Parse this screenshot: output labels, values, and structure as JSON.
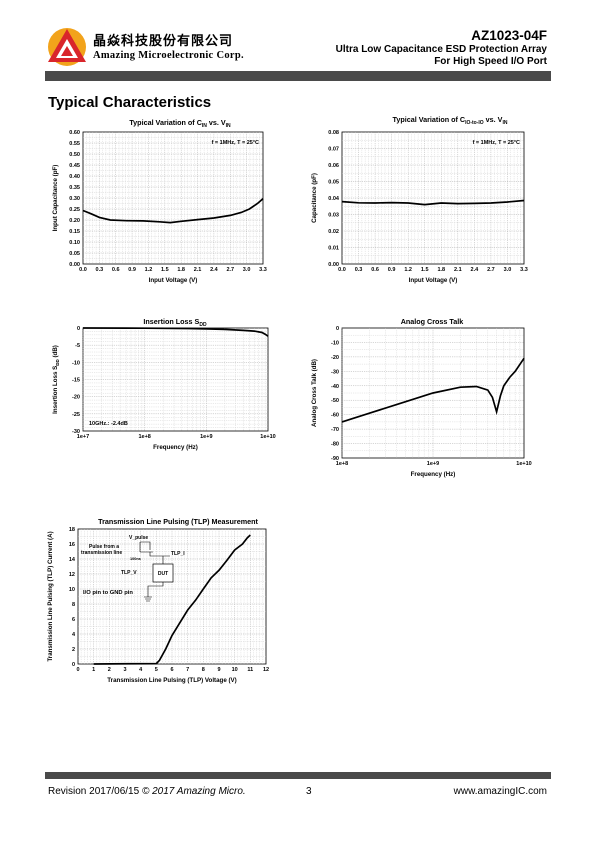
{
  "header": {
    "company_cn": "晶焱科技股份有限公司",
    "company_en": "Amazing Microelectronic Corp.",
    "part_number": "AZ1023-04F",
    "subtitle_1": "Ultra  Low  Capacitance  ESD  Protection  Array",
    "subtitle_2": "For  High  Speed  I/O  Port",
    "brand_color": "#d9262b",
    "logo_accent": "#f2a31b"
  },
  "section_title": "Typical Characteristics",
  "footer": {
    "revision": "Revision 2017/06/15",
    "copyright": "© 2017 Amazing Micro.",
    "page": "3",
    "website": "www.amazingIC.com"
  },
  "chart_data": [
    {
      "type": "line",
      "title": "Typical Variation of C",
      "title_sub": "IN",
      "title_mid": " vs. V",
      "title_sub2": "IN",
      "xlabel": "Input Voltage (V)",
      "ylabel": "Input Capacitance (pF)",
      "annotation": "f = 1MHz, T = 25°C",
      "xlim": [
        0,
        3.3
      ],
      "ylim": [
        0,
        0.6
      ],
      "xticks": [
        "0.0",
        "0.3",
        "0.6",
        "0.9",
        "1.2",
        "1.5",
        "1.8",
        "2.1",
        "2.4",
        "2.7",
        "3.0",
        "3.3"
      ],
      "yticks": [
        "0.00",
        "0.05",
        "0.10",
        "0.15",
        "0.20",
        "0.25",
        "0.30",
        "0.35",
        "0.40",
        "0.45",
        "0.50",
        "0.55",
        "0.60"
      ],
      "x": [
        0,
        0.15,
        0.3,
        0.5,
        0.8,
        1.1,
        1.4,
        1.6,
        1.8,
        2.1,
        2.4,
        2.7,
        2.9,
        3.05,
        3.2,
        3.3
      ],
      "y": [
        0.243,
        0.228,
        0.212,
        0.2,
        0.197,
        0.196,
        0.192,
        0.188,
        0.194,
        0.202,
        0.209,
        0.221,
        0.234,
        0.25,
        0.275,
        0.297
      ]
    },
    {
      "type": "line",
      "title": "Typical Variation of C",
      "title_sub": "IO-to-IO",
      "title_mid": " vs. V",
      "title_sub2": "IN",
      "xlabel": "Input Voltage (V)",
      "ylabel": "Capacitance (pF)",
      "annotation": "f = 1MHz, T = 25°C",
      "xlim": [
        0,
        3.3
      ],
      "ylim": [
        0,
        0.08
      ],
      "xticks": [
        "0.0",
        "0.3",
        "0.6",
        "0.9",
        "1.2",
        "1.5",
        "1.8",
        "2.1",
        "2.4",
        "2.7",
        "3.0",
        "3.3"
      ],
      "yticks": [
        "0.00",
        "0.01",
        "0.02",
        "0.03",
        "0.04",
        "0.05",
        "0.06",
        "0.07",
        "0.08"
      ],
      "x": [
        0,
        0.3,
        0.6,
        0.9,
        1.2,
        1.5,
        1.8,
        2.1,
        2.4,
        2.7,
        3.0,
        3.3
      ],
      "y": [
        0.0378,
        0.0371,
        0.037,
        0.0372,
        0.037,
        0.036,
        0.037,
        0.0366,
        0.0367,
        0.037,
        0.0376,
        0.0385
      ]
    },
    {
      "type": "line",
      "title": "Insertion Loss S",
      "title_sub": "DD",
      "xlabel": "Frequency (Hz)",
      "ylabel": "Insertion Loss S",
      "ylabel_sub": "DD",
      "ylabel_tail": " (dB)",
      "annotation": "10GHz.: -2.4dB",
      "xscale": "log",
      "xlim": [
        10000000,
        10000000000
      ],
      "ylim": [
        -30,
        0
      ],
      "xticks": [
        "1e+7",
        "1e+8",
        "1e+9",
        "1e+10"
      ],
      "yticks": [
        "0",
        "-5",
        "-10",
        "-15",
        "-20",
        "-25",
        "-30"
      ],
      "x": [
        10000000,
        100000000,
        500000000,
        1000000000,
        2000000000,
        4000000000,
        6000000000,
        8000000000,
        9000000000,
        10000000000
      ],
      "y": [
        0,
        -0.05,
        -0.15,
        -0.25,
        -0.4,
        -0.7,
        -0.9,
        -1.3,
        -1.8,
        -2.4
      ]
    },
    {
      "type": "line",
      "title": "Analog Cross Talk",
      "xlabel": "Frequency (Hz)",
      "ylabel": "Analog Cross Talk (dB)",
      "xscale": "log",
      "xlim": [
        100000000,
        10000000000
      ],
      "ylim": [
        -90,
        0
      ],
      "xticks": [
        "1e+8",
        "1e+9",
        "1e+10"
      ],
      "yticks": [
        "0",
        "-10",
        "-20",
        "-30",
        "-40",
        "-50",
        "-60",
        "-70",
        "-80",
        "-90"
      ],
      "x": [
        100000000,
        200000000,
        500000000,
        1000000000,
        2000000000,
        3000000000,
        4000000000,
        4500000000,
        5000000000,
        5500000000,
        6000000000,
        7000000000,
        8000000000,
        10000000000
      ],
      "y": [
        -65,
        -59,
        -51,
        -45,
        -41,
        -40.5,
        -43,
        -48,
        -58,
        -47,
        -40,
        -34,
        -30,
        -21
      ]
    },
    {
      "type": "line",
      "title": "Transmission Line Pulsing (TLP) Measurement",
      "xlabel": "Transmission Line Pulsing (TLP) Voltage (V)",
      "ylabel": "Transmission Line Pulsing (TLP) Current (A)",
      "annotation": "I/O pin to GND pin",
      "xlim": [
        0,
        12
      ],
      "ylim": [
        0,
        18
      ],
      "xticks": [
        "0",
        "1",
        "2",
        "3",
        "4",
        "5",
        "6",
        "7",
        "8",
        "9",
        "10",
        "11",
        "12"
      ],
      "yticks": [
        "0",
        "2",
        "4",
        "6",
        "8",
        "10",
        "12",
        "14",
        "16",
        "18"
      ],
      "x": [
        1,
        5.0,
        5.2,
        5.6,
        6.0,
        6.5,
        7.0,
        7.5,
        8.0,
        8.5,
        9.0,
        9.5,
        10.0,
        10.5,
        10.8,
        11.0
      ],
      "y": [
        0,
        0.05,
        0.5,
        2.0,
        3.8,
        5.5,
        7.2,
        8.5,
        10.0,
        11.5,
        12.5,
        13.8,
        15.2,
        16.0,
        16.8,
        17.2
      ],
      "inset": {
        "pulse_label": "V_pulse",
        "source_label_1": "Pulse from a",
        "source_label_2": "transmission line",
        "resistor_label": "100ns",
        "current_label": "TLP_I",
        "voltage_label": "TLP_V",
        "dut_label": "DUT"
      }
    }
  ]
}
